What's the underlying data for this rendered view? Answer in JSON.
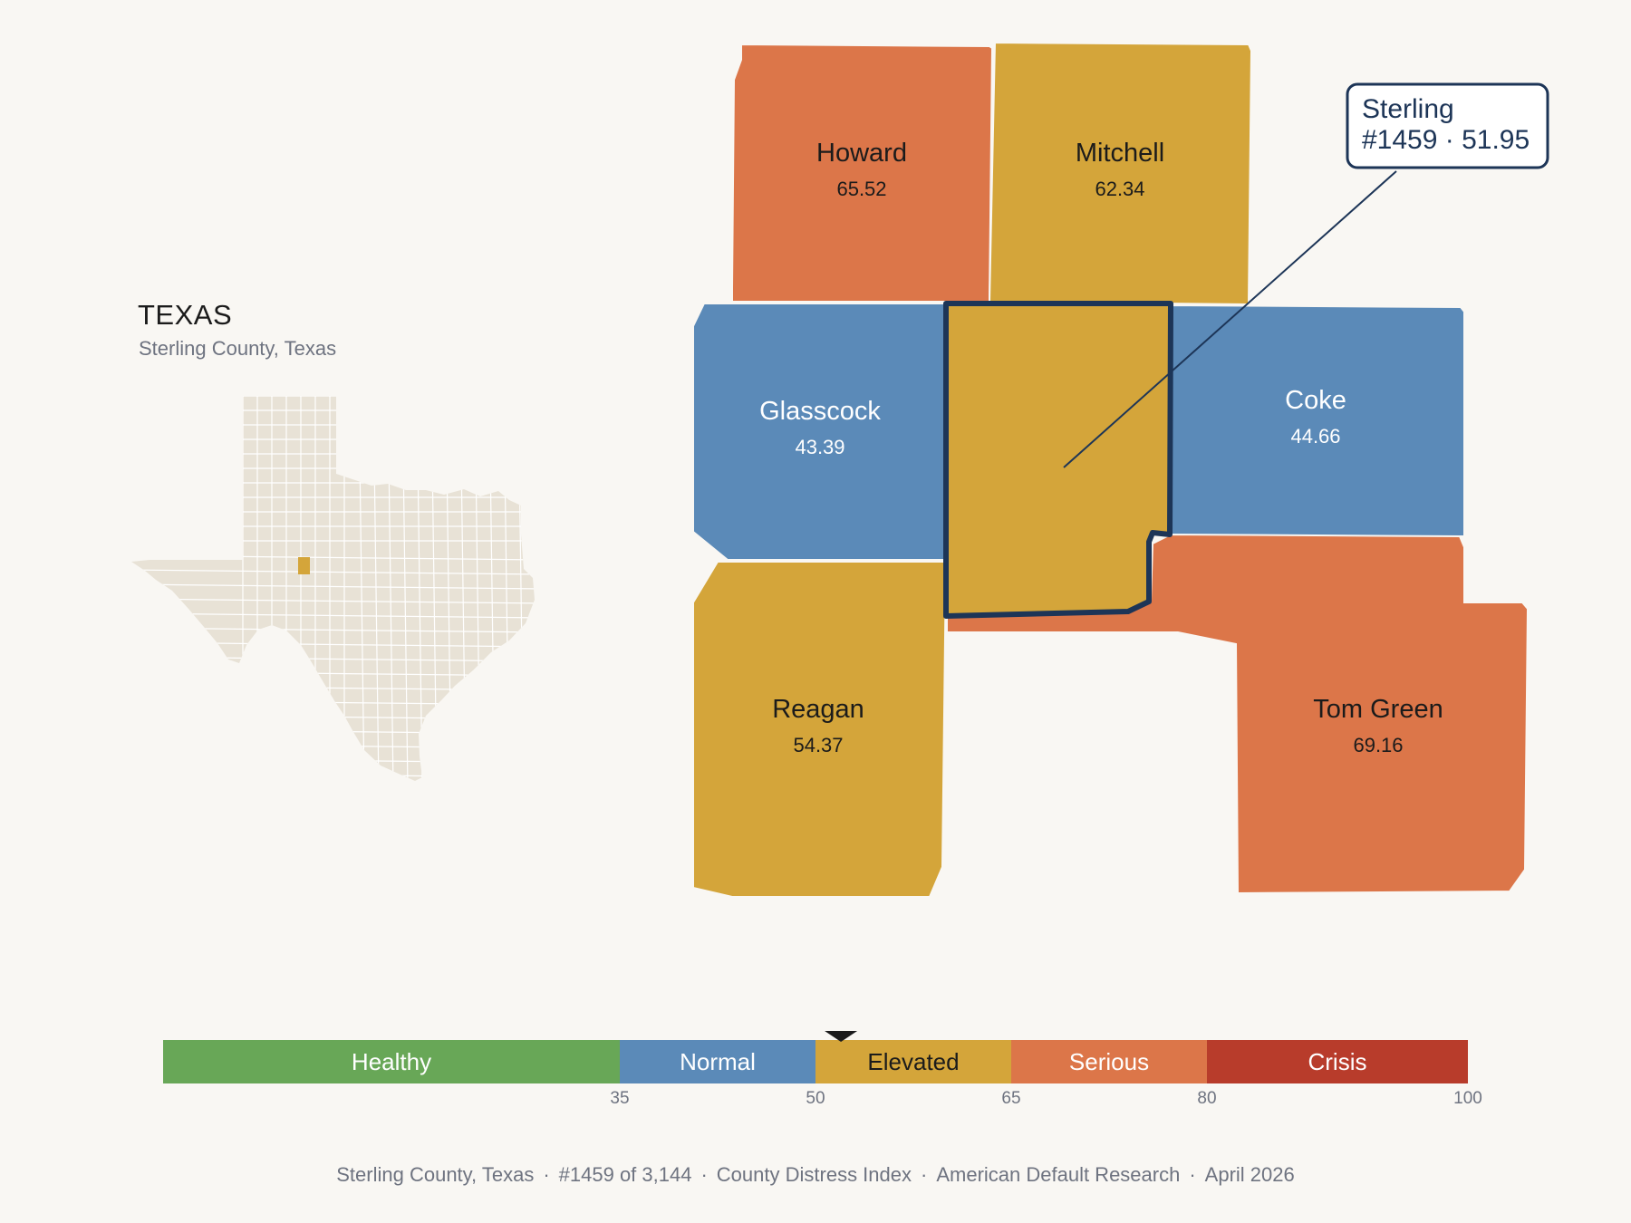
{
  "inset": {
    "state_name": "TEXAS",
    "subtitle": "Sterling County, Texas"
  },
  "focus": {
    "name": "Sterling",
    "rank_value": "#1459 · 51.95",
    "value": 51.95,
    "color": "#d4a53a",
    "outline_color": "#1d3557"
  },
  "counties": [
    {
      "id": "howard",
      "name": "Howard",
      "value": "65.52",
      "color": "#dc7649",
      "text_color": "#1b1b1b"
    },
    {
      "id": "mitchell",
      "name": "Mitchell",
      "value": "62.34",
      "color": "#d4a53a",
      "text_color": "#1b1b1b"
    },
    {
      "id": "glasscock",
      "name": "Glasscock",
      "value": "43.39",
      "color": "#5b8ab8",
      "text_color": "#ffffff"
    },
    {
      "id": "coke",
      "name": "Coke",
      "value": "44.66",
      "color": "#5b8ab8",
      "text_color": "#ffffff"
    },
    {
      "id": "reagan",
      "name": "Reagan",
      "value": "54.37",
      "color": "#d4a53a",
      "text_color": "#1b1b1b"
    },
    {
      "id": "tomgreen",
      "name": "Tom Green",
      "value": "69.16",
      "color": "#dc7649",
      "text_color": "#1b1b1b"
    }
  ],
  "legend": {
    "bands": [
      {
        "label": "Healthy",
        "from": 0,
        "to": 35,
        "color": "#68a757",
        "text_color": "#ffffff"
      },
      {
        "label": "Normal",
        "from": 35,
        "to": 50,
        "color": "#5b8ab8",
        "text_color": "#ffffff"
      },
      {
        "label": "Elevated",
        "from": 50,
        "to": 65,
        "color": "#d4a53a",
        "text_color": "#1b1b1b"
      },
      {
        "label": "Serious",
        "from": 65,
        "to": 80,
        "color": "#dc7649",
        "text_color": "#ffffff"
      },
      {
        "label": "Crisis",
        "from": 80,
        "to": 100,
        "color": "#b83c2b",
        "text_color": "#ffffff"
      }
    ],
    "ticks": [
      "35",
      "50",
      "65",
      "80",
      "100"
    ],
    "marker_value": 51.95
  },
  "footer": {
    "location": "Sterling County, Texas",
    "rank": "#1459 of 3,144",
    "index": "County Distress Index",
    "source": "American Default Research",
    "date": "April 2026"
  }
}
